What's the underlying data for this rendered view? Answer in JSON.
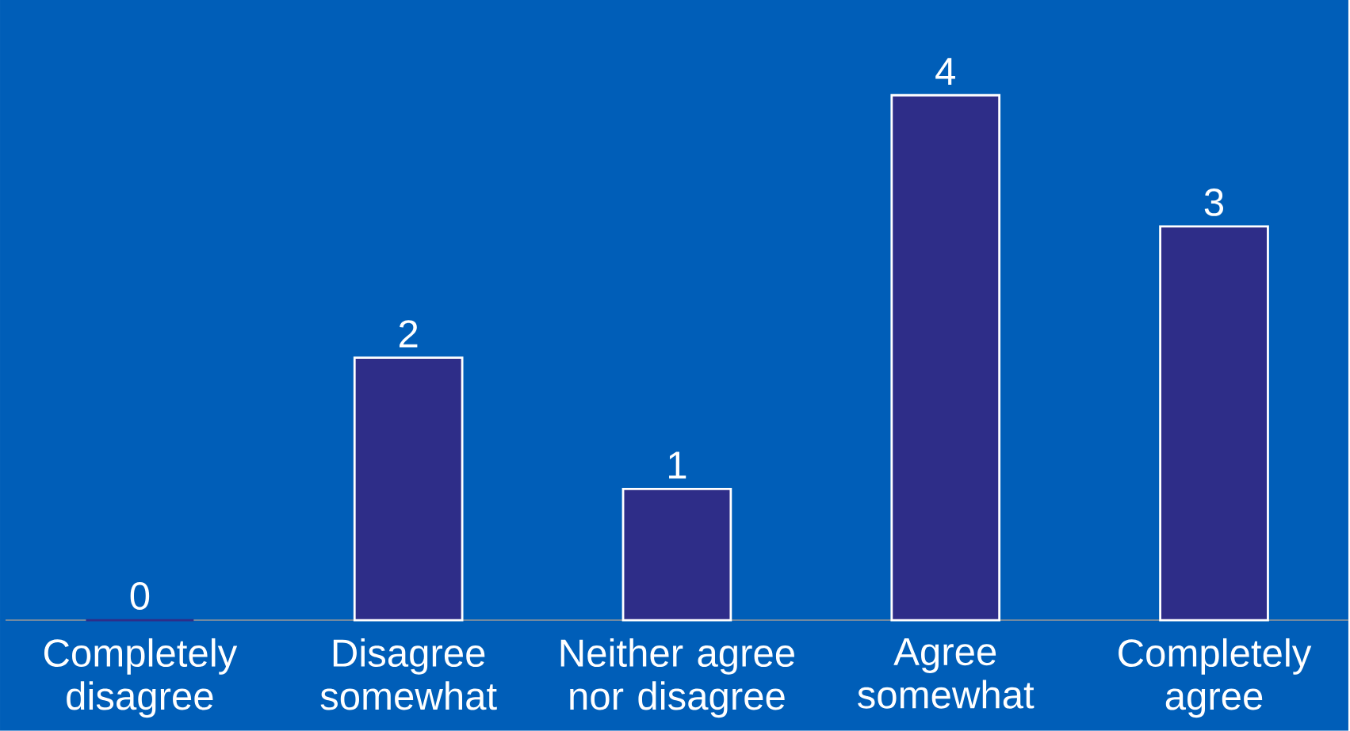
{
  "chart_data": {
    "type": "bar",
    "categories": [
      "Completely disagree",
      "Disagree somewhat",
      "Neither agree nor disagree",
      "Agree somewhat",
      "Completely agree"
    ],
    "values": [
      0,
      2,
      1,
      4,
      3
    ],
    "color": "#2e2d88",
    "data_labels": true
  }
}
